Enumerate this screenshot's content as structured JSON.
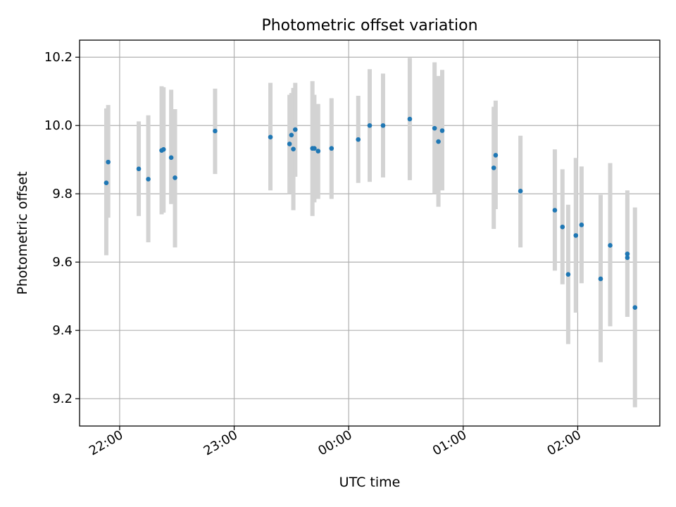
{
  "chart_data": {
    "type": "scatter",
    "title": "Photometric offset variation",
    "xlabel": "UTC time",
    "ylabel": "Photometric offset",
    "xlim": [
      "21:39",
      "02:43"
    ],
    "ylim": [
      9.12,
      10.25
    ],
    "grid": true,
    "x_ticks": [
      "22:00",
      "23:00",
      "00:00",
      "01:00",
      "02:00"
    ],
    "y_ticks": [
      9.2,
      9.4,
      9.6,
      9.8,
      10.0,
      10.2
    ],
    "y_tick_labels": [
      "9.2",
      "9.4",
      "9.6",
      "9.8",
      "10.0",
      "10.2"
    ],
    "colors": {
      "point": "#1f77b4",
      "errorbar": "#d3d3d3",
      "grid": "#b0b0b0"
    },
    "points": [
      {
        "x": "21:53",
        "y": 9.832,
        "ylo": 9.62,
        "yhi": 10.05
      },
      {
        "x": "21:54",
        "y": 9.893,
        "ylo": 9.73,
        "yhi": 10.06
      },
      {
        "x": "22:10",
        "y": 9.873,
        "ylo": 9.735,
        "yhi": 10.012
      },
      {
        "x": "22:15",
        "y": 9.843,
        "ylo": 9.658,
        "yhi": 10.03
      },
      {
        "x": "22:22",
        "y": 9.927,
        "ylo": 9.74,
        "yhi": 10.115
      },
      {
        "x": "22:23",
        "y": 9.93,
        "ylo": 9.745,
        "yhi": 10.112
      },
      {
        "x": "22:27",
        "y": 9.906,
        "ylo": 9.77,
        "yhi": 10.105
      },
      {
        "x": "22:29",
        "y": 9.847,
        "ylo": 9.643,
        "yhi": 10.048
      },
      {
        "x": "22:50",
        "y": 9.984,
        "ylo": 9.858,
        "yhi": 10.108
      },
      {
        "x": "23:19",
        "y": 9.966,
        "ylo": 9.81,
        "yhi": 10.125
      },
      {
        "x": "23:29",
        "y": 9.946,
        "ylo": 9.8,
        "yhi": 10.09
      },
      {
        "x": "23:30",
        "y": 9.972,
        "ylo": 9.85,
        "yhi": 10.095
      },
      {
        "x": "23:31",
        "y": 9.931,
        "ylo": 9.752,
        "yhi": 10.11
      },
      {
        "x": "23:32",
        "y": 9.988,
        "ylo": 9.85,
        "yhi": 10.125
      },
      {
        "x": "23:41",
        "y": 9.933,
        "ylo": 9.735,
        "yhi": 10.13
      },
      {
        "x": "23:42",
        "y": 9.933,
        "ylo": 9.775,
        "yhi": 10.09
      },
      {
        "x": "23:44",
        "y": 9.925,
        "ylo": 9.785,
        "yhi": 10.063
      },
      {
        "x": "23:51",
        "y": 9.933,
        "ylo": 9.785,
        "yhi": 10.08
      },
      {
        "x": "00:05",
        "y": 9.959,
        "ylo": 9.832,
        "yhi": 10.087
      },
      {
        "x": "00:11",
        "y": 10.0,
        "ylo": 9.835,
        "yhi": 10.165
      },
      {
        "x": "00:18",
        "y": 10.0,
        "ylo": 9.848,
        "yhi": 10.152
      },
      {
        "x": "00:32",
        "y": 10.019,
        "ylo": 9.84,
        "yhi": 10.198
      },
      {
        "x": "00:45",
        "y": 9.992,
        "ylo": 9.8,
        "yhi": 10.185
      },
      {
        "x": "00:47",
        "y": 9.953,
        "ylo": 9.762,
        "yhi": 10.145
      },
      {
        "x": "00:49",
        "y": 9.985,
        "ylo": 9.81,
        "yhi": 10.163
      },
      {
        "x": "01:16",
        "y": 9.876,
        "ylo": 9.697,
        "yhi": 10.055
      },
      {
        "x": "01:17",
        "y": 9.913,
        "ylo": 9.755,
        "yhi": 10.073
      },
      {
        "x": "01:30",
        "y": 9.808,
        "ylo": 9.643,
        "yhi": 9.97
      },
      {
        "x": "01:48",
        "y": 9.752,
        "ylo": 9.575,
        "yhi": 9.93
      },
      {
        "x": "01:52",
        "y": 9.703,
        "ylo": 9.535,
        "yhi": 9.872
      },
      {
        "x": "01:55",
        "y": 9.564,
        "ylo": 9.36,
        "yhi": 9.768
      },
      {
        "x": "01:59",
        "y": 9.678,
        "ylo": 9.452,
        "yhi": 9.905
      },
      {
        "x": "02:02",
        "y": 9.709,
        "ylo": 9.538,
        "yhi": 9.88
      },
      {
        "x": "02:12",
        "y": 9.551,
        "ylo": 9.307,
        "yhi": 9.797
      },
      {
        "x": "02:17",
        "y": 9.649,
        "ylo": 9.412,
        "yhi": 9.89
      },
      {
        "x": "02:26",
        "y": 9.624,
        "ylo": 9.44,
        "yhi": 9.81
      },
      {
        "x": "02:26",
        "y": 9.613,
        "ylo": 9.44,
        "yhi": 9.785
      },
      {
        "x": "02:30",
        "y": 9.467,
        "ylo": 9.175,
        "yhi": 9.76
      }
    ]
  }
}
